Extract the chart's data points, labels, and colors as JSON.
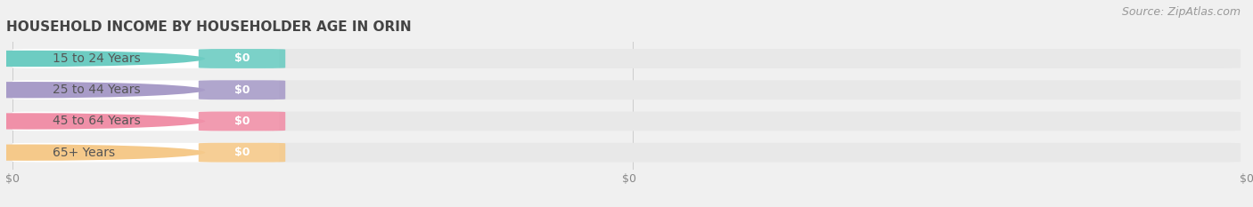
{
  "title": "HOUSEHOLD INCOME BY HOUSEHOLDER AGE IN ORIN",
  "source": "Source: ZipAtlas.com",
  "categories": [
    "15 to 24 Years",
    "25 to 44 Years",
    "45 to 64 Years",
    "65+ Years"
  ],
  "values": [
    "$0",
    "$0",
    "$0",
    "$0"
  ],
  "bar_colors": [
    "#6dccc2",
    "#a89cc8",
    "#f090a8",
    "#f5c98a"
  ],
  "background_color": "#f0f0f0",
  "bar_bg_color": "#e8e8e8",
  "white_pill_color": "#ffffff",
  "title_fontsize": 11,
  "label_fontsize": 10,
  "value_fontsize": 9,
  "tick_fontsize": 9,
  "source_fontsize": 9
}
